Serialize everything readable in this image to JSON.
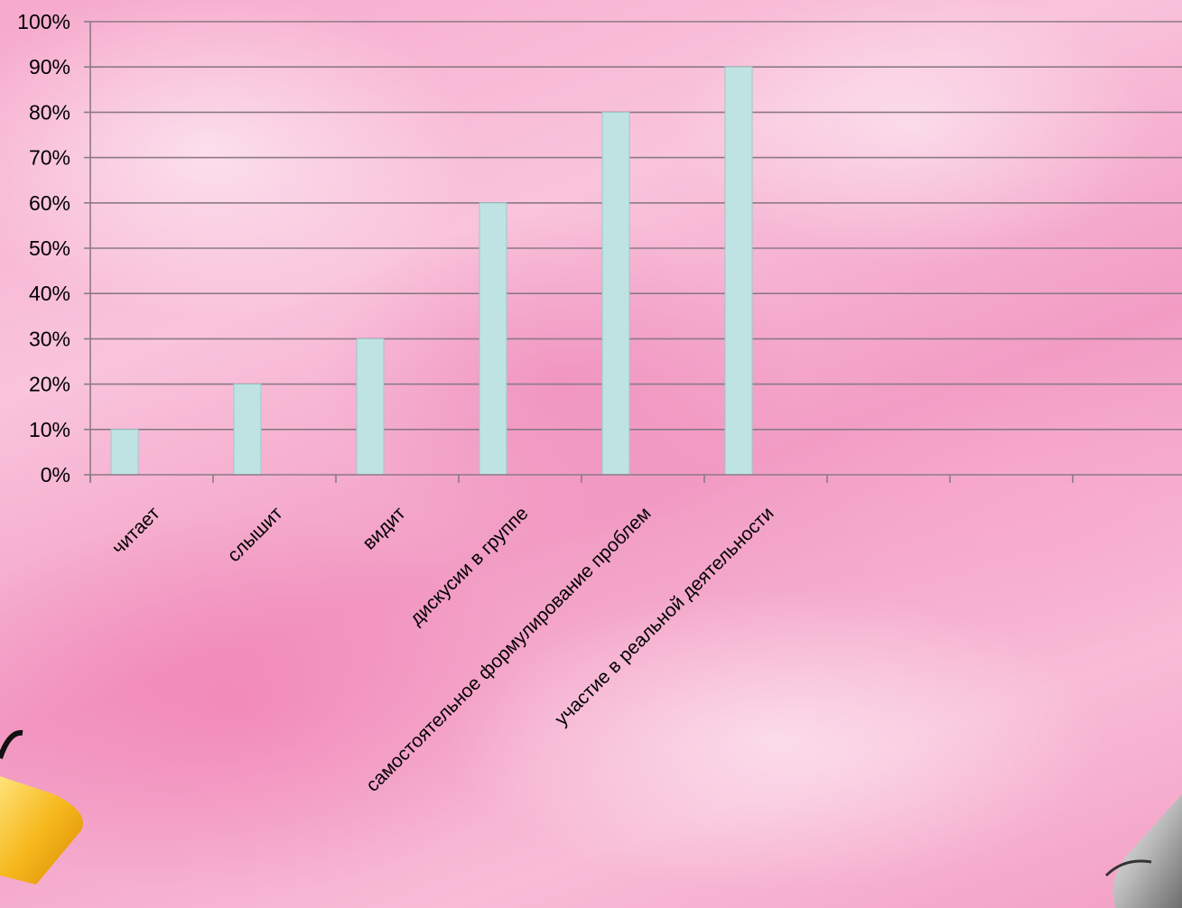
{
  "colors": {
    "bar": "#bfe3e3",
    "grid": "#8c7a84"
  },
  "chart_data": {
    "type": "bar",
    "title": "",
    "xlabel": "",
    "ylabel": "",
    "ylim": [
      0,
      100
    ],
    "y_ticks": [
      "0%",
      "10%",
      "20%",
      "30%",
      "40%",
      "50%",
      "60%",
      "70%",
      "80%",
      "90%",
      "100%"
    ],
    "grid": true,
    "categories": [
      "читает",
      "слышит",
      "видит",
      "дискусии в группе",
      "самостоятельное формулирование  проблем",
      "участие в реальной деятельности"
    ],
    "values": [
      10,
      20,
      30,
      60,
      80,
      90
    ],
    "unit": "%"
  }
}
